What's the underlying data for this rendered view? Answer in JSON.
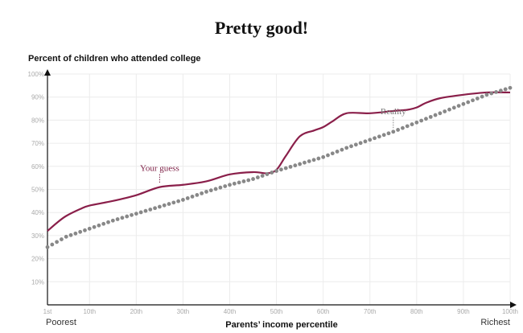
{
  "headline": "Pretty good!",
  "chart_data": {
    "type": "line",
    "ylabel": "Percent of children who attended college",
    "xlabel": "Parents’ income percentile",
    "x_left_caption": "Poorest",
    "x_right_caption": "Richest",
    "xlim": [
      1,
      100
    ],
    "ylim": [
      0,
      100
    ],
    "x_ticks": [
      {
        "value": 1,
        "label": "1st"
      },
      {
        "value": 10,
        "label": "10th"
      },
      {
        "value": 20,
        "label": "20th"
      },
      {
        "value": 30,
        "label": "30th"
      },
      {
        "value": 40,
        "label": "40th"
      },
      {
        "value": 50,
        "label": "50th"
      },
      {
        "value": 60,
        "label": "60th"
      },
      {
        "value": 70,
        "label": "70th"
      },
      {
        "value": 80,
        "label": "80th"
      },
      {
        "value": 90,
        "label": "90th"
      },
      {
        "value": 100,
        "label": "100th"
      }
    ],
    "y_ticks": [
      {
        "value": 10,
        "label": "10%"
      },
      {
        "value": 20,
        "label": "20%"
      },
      {
        "value": 30,
        "label": "30%"
      },
      {
        "value": 40,
        "label": "40%"
      },
      {
        "value": 50,
        "label": "50%"
      },
      {
        "value": 60,
        "label": "60%"
      },
      {
        "value": 70,
        "label": "70%"
      },
      {
        "value": 80,
        "label": "80%"
      },
      {
        "value": 90,
        "label": "90%"
      },
      {
        "value": 100,
        "label": "100%"
      }
    ],
    "grid": true,
    "series": [
      {
        "name": "Your guess",
        "color": "#8a1f4a",
        "style": "line",
        "x": [
          1,
          3,
          5,
          8,
          10,
          15,
          20,
          25,
          30,
          35,
          40,
          45,
          48,
          50,
          52,
          55,
          58,
          60,
          62,
          65,
          70,
          75,
          78,
          80,
          82,
          85,
          90,
          95,
          100
        ],
        "y": [
          32,
          35.5,
          38.5,
          41.5,
          43,
          45,
          47.5,
          51,
          52,
          53.5,
          56.5,
          57.5,
          57,
          58.5,
          64.5,
          73,
          75.5,
          77,
          79.5,
          83,
          83,
          84,
          84.5,
          85.5,
          87.5,
          89.5,
          91,
          92,
          92
        ]
      },
      {
        "name": "Reality",
        "color": "#888888",
        "style": "dots",
        "x": [
          1,
          5,
          10,
          15,
          20,
          25,
          30,
          35,
          40,
          45,
          50,
          55,
          60,
          65,
          70,
          75,
          80,
          85,
          90,
          95,
          100
        ],
        "y": [
          25,
          29.5,
          33,
          36.5,
          39.5,
          42.5,
          45.5,
          49,
          52,
          54.5,
          58,
          61,
          64,
          68,
          71.5,
          75,
          79,
          83,
          87,
          91,
          94
        ]
      }
    ],
    "annotations": [
      {
        "text": "Your guess",
        "series": "Your guess",
        "x": 25
      },
      {
        "text": "Reality",
        "series": "Reality",
        "x": 75
      }
    ]
  }
}
